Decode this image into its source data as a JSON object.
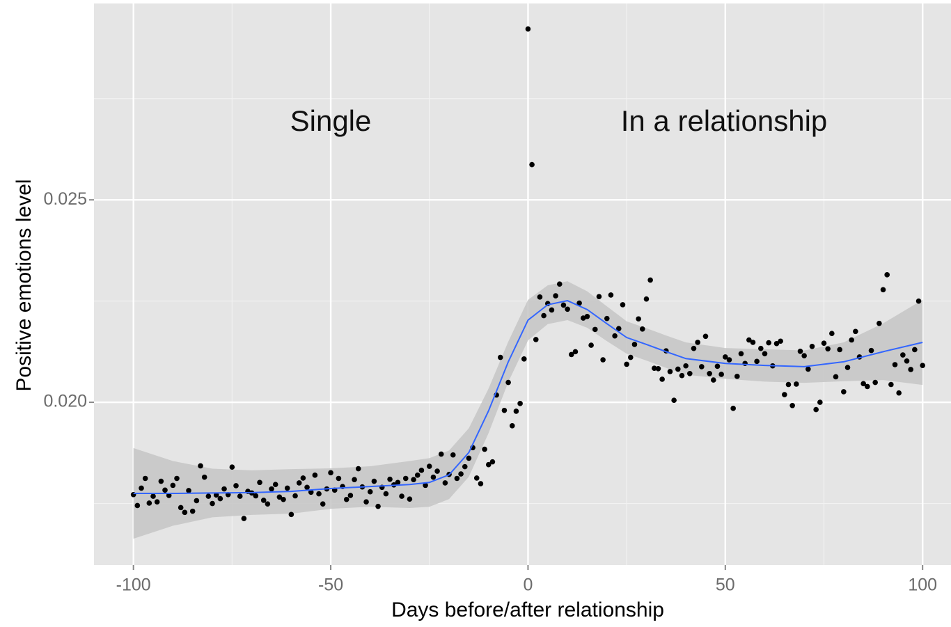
{
  "chart_data": {
    "type": "scatter",
    "x_label": "Days before/after relationship",
    "y_label": "Positive emotions level",
    "annotations": [
      "Single",
      "In a relationship"
    ],
    "xlim": [
      -110,
      107.2
    ],
    "ylim": [
      0.01598,
      0.02985
    ],
    "xticks": [
      -100,
      -50,
      0,
      50,
      100
    ],
    "yticks": [
      {
        "value": 0.02,
        "label": "0.020"
      },
      0.025
    ],
    "x_minor_grid": [
      -75,
      -25,
      25,
      75
    ],
    "y_minor_grid": [
      0.0175,
      0.0225,
      0.0275
    ],
    "grid": true,
    "color": "#000000",
    "x": [
      -100,
      -99,
      -98,
      -97,
      -96,
      -95,
      -94,
      -93,
      -92,
      -91,
      -90,
      -89,
      -88,
      -87,
      -86,
      -85,
      -84,
      -83,
      -82,
      -81,
      -80,
      -79,
      -78,
      -77,
      -76,
      -75,
      -74,
      -73,
      -72,
      -71,
      -70,
      -69,
      -68,
      -67,
      -66,
      -65,
      -64,
      -63,
      -62,
      -61,
      -60,
      -59,
      -58,
      -57,
      -56,
      -55,
      -54,
      -53,
      -52,
      -51,
      -50,
      -49,
      -48,
      -47,
      -46,
      -45,
      -44,
      -43,
      -42,
      -41,
      -40,
      -39,
      -38,
      -37,
      -36,
      -35,
      -34,
      -33,
      -32,
      -31,
      -30,
      -29,
      -28,
      -27,
      -26,
      -25,
      -24,
      -23,
      -22,
      -21,
      -20,
      -19,
      -18,
      -17,
      -16,
      -15,
      -14,
      -13,
      -12,
      -11,
      -10,
      -9,
      -8,
      -7,
      -6,
      -5,
      -4,
      -3,
      -2,
      -1,
      0,
      1,
      2,
      3,
      4,
      5,
      6,
      7,
      8,
      9,
      10,
      11,
      12,
      13,
      14,
      15,
      16,
      17,
      18,
      19,
      20,
      21,
      22,
      23,
      24,
      25,
      26,
      27,
      28,
      29,
      30,
      31,
      32,
      33,
      34,
      35,
      36,
      37,
      38,
      39,
      40,
      41,
      42,
      43,
      44,
      45,
      46,
      47,
      48,
      49,
      50,
      51,
      52,
      53,
      54,
      55,
      56,
      57,
      58,
      59,
      60,
      61,
      62,
      63,
      64,
      65,
      66,
      67,
      68,
      69,
      70,
      71,
      72,
      73,
      74,
      75,
      76,
      77,
      78,
      79,
      80,
      81,
      82,
      83,
      84,
      85,
      86,
      87,
      88,
      89,
      90,
      91,
      92,
      93,
      94,
      95,
      96,
      97,
      98,
      99,
      100
    ],
    "values": [
      0.01772,
      0.01745,
      0.01788,
      0.01812,
      0.01751,
      0.01768,
      0.01754,
      0.01805,
      0.01783,
      0.0177,
      0.01795,
      0.01812,
      0.0174,
      0.01728,
      0.01782,
      0.01731,
      0.01757,
      0.01843,
      0.01815,
      0.01768,
      0.0175,
      0.01771,
      0.01762,
      0.01786,
      0.01772,
      0.0184,
      0.01794,
      0.01768,
      0.01713,
      0.0178,
      0.01776,
      0.01769,
      0.01802,
      0.01758,
      0.01749,
      0.01786,
      0.01797,
      0.01766,
      0.0176,
      0.01788,
      0.01723,
      0.01769,
      0.01801,
      0.01813,
      0.0179,
      0.01778,
      0.0182,
      0.01774,
      0.01749,
      0.01786,
      0.01826,
      0.01783,
      0.01812,
      0.01792,
      0.0176,
      0.0177,
      0.01809,
      0.01836,
      0.01791,
      0.01754,
      0.01779,
      0.01805,
      0.01743,
      0.0179,
      0.01774,
      0.0181,
      0.01796,
      0.01802,
      0.01768,
      0.01812,
      0.01761,
      0.01809,
      0.0182,
      0.01832,
      0.01795,
      0.01842,
      0.01815,
      0.0183,
      0.01872,
      0.01801,
      0.01822,
      0.0187,
      0.01812,
      0.01823,
      0.01841,
      0.01862,
      0.01888,
      0.01813,
      0.01799,
      0.01884,
      0.01846,
      0.01853,
      0.02018,
      0.02111,
      0.0198,
      0.02049,
      0.01942,
      0.01978,
      0.01997,
      0.02107,
      0.02922,
      0.02587,
      0.02155,
      0.0226,
      0.02214,
      0.02244,
      0.02228,
      0.02263,
      0.02292,
      0.0224,
      0.0223,
      0.02118,
      0.02125,
      0.02245,
      0.02208,
      0.02212,
      0.02141,
      0.0218,
      0.02261,
      0.02105,
      0.02207,
      0.02265,
      0.02164,
      0.02182,
      0.02241,
      0.02094,
      0.02111,
      0.02143,
      0.02206,
      0.02181,
      0.02255,
      0.02302,
      0.02084,
      0.02083,
      0.02057,
      0.02127,
      0.02076,
      0.02005,
      0.02082,
      0.02066,
      0.0209,
      0.02071,
      0.02133,
      0.02148,
      0.02088,
      0.02163,
      0.02071,
      0.02055,
      0.02089,
      0.02069,
      0.02112,
      0.02105,
      0.01985,
      0.02064,
      0.0212,
      0.02096,
      0.02154,
      0.02148,
      0.02101,
      0.02133,
      0.0212,
      0.02147,
      0.0209,
      0.02145,
      0.02151,
      0.02019,
      0.02044,
      0.01992,
      0.02045,
      0.02126,
      0.02115,
      0.02082,
      0.02138,
      0.01982,
      0.02,
      0.02146,
      0.02132,
      0.0217,
      0.02063,
      0.0213,
      0.02026,
      0.02086,
      0.02154,
      0.02175,
      0.02112,
      0.02046,
      0.02039,
      0.02128,
      0.02049,
      0.02195,
      0.02278,
      0.02315,
      0.02044,
      0.02093,
      0.02023,
      0.02117,
      0.02102,
      0.02081,
      0.0213,
      0.0225,
      0.02091
    ],
    "smooth_color": "#3366ff",
    "band_color": "#c6c6c6",
    "smooth_x": [
      -100,
      -90,
      -80,
      -70,
      -60,
      -50,
      -40,
      -30,
      -25,
      -20,
      -15,
      -10,
      -5,
      0,
      5,
      10,
      15,
      20,
      25,
      30,
      35,
      40,
      50,
      60,
      70,
      80,
      90,
      100
    ],
    "smooth": [
      0.01775,
      0.01775,
      0.01776,
      0.01777,
      0.0178,
      0.01787,
      0.01792,
      0.01797,
      0.01802,
      0.01821,
      0.01876,
      0.01979,
      0.021,
      0.02203,
      0.02241,
      0.02251,
      0.02229,
      0.02194,
      0.0216,
      0.02143,
      0.02125,
      0.02108,
      0.02096,
      0.02091,
      0.02088,
      0.021,
      0.02125,
      0.02148
    ],
    "smooth_lower": [
      0.01663,
      0.01695,
      0.01716,
      0.01722,
      0.01725,
      0.01737,
      0.01742,
      0.01739,
      0.01742,
      0.01761,
      0.01816,
      0.01924,
      0.0205,
      0.02153,
      0.02193,
      0.02203,
      0.02184,
      0.02151,
      0.0212,
      0.02103,
      0.02085,
      0.02068,
      0.02058,
      0.02051,
      0.02048,
      0.02052,
      0.02055,
      0.02043
    ],
    "smooth_upper": [
      0.01887,
      0.01855,
      0.01836,
      0.01832,
      0.01835,
      0.01837,
      0.01842,
      0.01855,
      0.01862,
      0.01881,
      0.01936,
      0.02034,
      0.0215,
      0.02253,
      0.02289,
      0.02299,
      0.02274,
      0.02237,
      0.022,
      0.02183,
      0.02165,
      0.02148,
      0.02134,
      0.02131,
      0.02128,
      0.02148,
      0.02195,
      0.02253
    ]
  }
}
